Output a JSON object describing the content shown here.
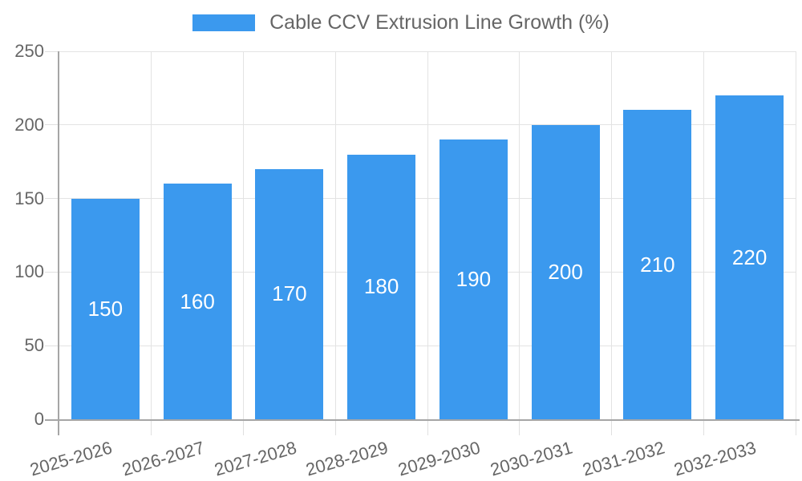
{
  "legend": {
    "label": "Cable CCV Extrusion Line Growth (%)"
  },
  "colors": {
    "bar": "#3B99EE",
    "bar_value_text": "#FFFFFF",
    "grid_line": "#E3E3E3",
    "tick_mark": "#E0E0E0",
    "axis_line": "#A6A6A6",
    "axis_text": "#666666",
    "legend_text": "#666666",
    "background": "#FFFFFF"
  },
  "chart_data": {
    "type": "bar",
    "title": "Cable CCV Extrusion Line Growth (%)",
    "categories": [
      "2025-2026",
      "2026-2027",
      "2027-2028",
      "2028-2029",
      "2029-2030",
      "2030-2031",
      "2031-2032",
      "2032-2033"
    ],
    "values": [
      150,
      160,
      170,
      180,
      190,
      200,
      210,
      220
    ],
    "xlabel": "",
    "ylabel": "",
    "ylim": [
      0,
      250
    ],
    "yticks": [
      0,
      50,
      100,
      150,
      200,
      250
    ],
    "grid": true,
    "legend_position": "top",
    "bar_label_position": "center",
    "x_label_rotation_deg": -16
  }
}
